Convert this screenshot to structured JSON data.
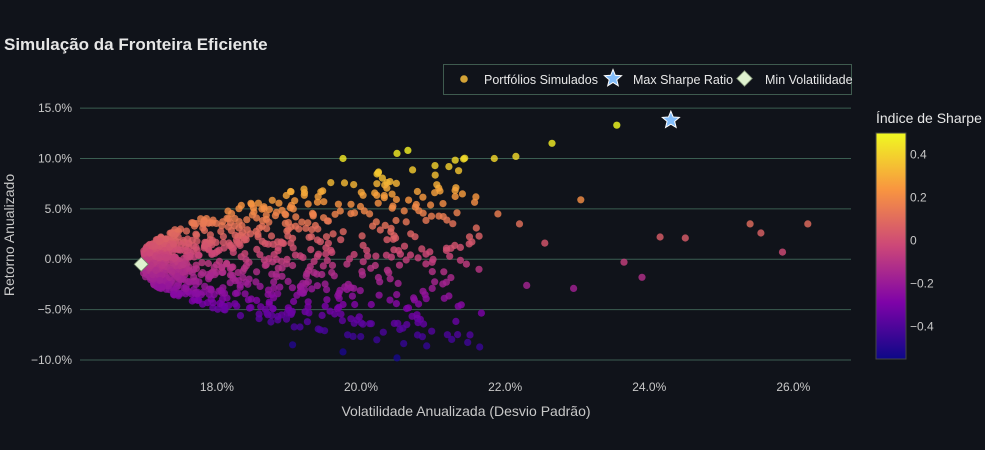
{
  "chart_data": {
    "type": "scatter",
    "title": "Simulação da Fronteira Eficiente",
    "xlabel": "Volatilidade Anualizada (Desvio Padrão)",
    "ylabel": "Retorno Anualizado",
    "xlim": [
      16.1,
      26.8
    ],
    "ylim": [
      -10.8,
      16.2
    ],
    "xticks": [
      18,
      20,
      22,
      24,
      26
    ],
    "xtick_labels": [
      "18.0%",
      "20.0%",
      "22.0%",
      "24.0%",
      "26.0%"
    ],
    "yticks": [
      -10,
      -5,
      0,
      5,
      10,
      15
    ],
    "ytick_labels": [
      "−10.0%",
      "−5.0%",
      "0.0%",
      "5.0%",
      "10.0%",
      "15.0%"
    ],
    "grid": "horizontal",
    "legend": {
      "placement": "top-right",
      "entries": [
        "Portfólios Simulados",
        "Max Sharpe Ratio",
        "Min Volatilidade"
      ]
    },
    "colorbar": {
      "title": "Índice de Sharpe",
      "range": [
        -0.55,
        0.5
      ],
      "ticks": [
        0.4,
        0.2,
        0,
        -0.2,
        -0.4
      ],
      "tick_labels": [
        "0.4",
        "0.2",
        "0",
        "−0.2",
        "−0.4"
      ],
      "colorscale": "plasma"
    },
    "series": [
      {
        "name": "Portfólios Simulados",
        "marker": "circle",
        "approx_count": 1000,
        "sample_points": [
          [
            23.55,
            13.3
          ],
          [
            22.65,
            11.5
          ],
          [
            20.65,
            10.8
          ],
          [
            20.5,
            10.5
          ],
          [
            19.75,
            10.0
          ],
          [
            21.85,
            10.0
          ],
          [
            22.15,
            10.2
          ],
          [
            23.05,
            5.9
          ],
          [
            25.4,
            3.5
          ],
          [
            26.2,
            3.5
          ],
          [
            25.55,
            2.6
          ],
          [
            24.15,
            2.2
          ],
          [
            24.5,
            2.1
          ],
          [
            25.85,
            0.7
          ],
          [
            23.65,
            -0.3
          ],
          [
            23.9,
            -1.8
          ],
          [
            22.95,
            -2.9
          ],
          [
            22.3,
            -2.6
          ],
          [
            20.5,
            -9.8
          ],
          [
            19.75,
            -9.2
          ],
          [
            19.05,
            -8.5
          ],
          [
            22.2,
            3.5
          ],
          [
            22.55,
            1.6
          ],
          [
            21.6,
            3.1
          ],
          [
            21.9,
            4.5
          ],
          [
            19.4,
            3.0
          ],
          [
            18.6,
            -2.7
          ]
        ]
      },
      {
        "name": "Max Sharpe Ratio",
        "marker": "star",
        "color": "#83bdfa",
        "x": 24.3,
        "y": 13.8
      },
      {
        "name": "Min Volatilidade",
        "marker": "diamond",
        "color": "#dff2cf",
        "x": 16.95,
        "y": -0.5
      }
    ]
  }
}
